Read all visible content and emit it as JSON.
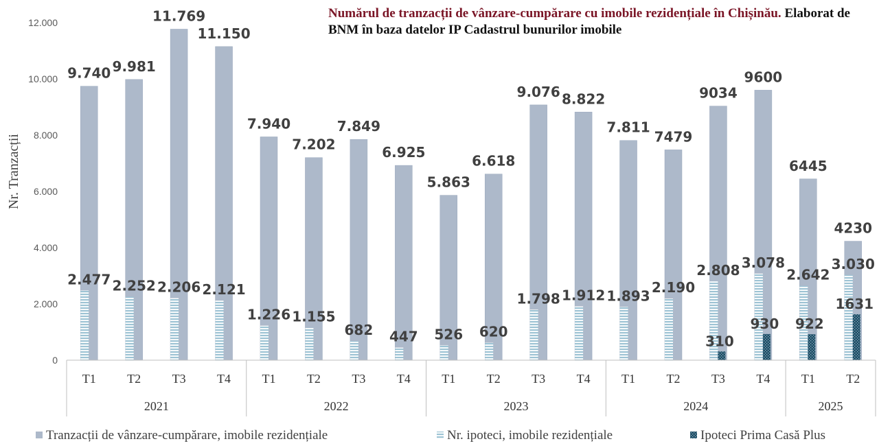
{
  "chart_data": {
    "type": "bar",
    "title_part1": "Numărul de tranzacții de vânzare-cumpărare cu imobile rezidențiale în Chișinău.",
    "title_part2": " Elaborat de BNM în baza datelor IP Cadastrul bunurilor imobile",
    "ylabel": "Nr. Tranzacții",
    "ylim": [
      0,
      12000
    ],
    "yticks": [
      {
        "value": 0,
        "label": "0"
      },
      {
        "value": 2000,
        "label": "2.000"
      },
      {
        "value": 4000,
        "label": "4.000"
      },
      {
        "value": 6000,
        "label": "6.000"
      },
      {
        "value": 8000,
        "label": "8.000"
      },
      {
        "value": 10000,
        "label": "10.000"
      },
      {
        "value": 12000,
        "label": "12.000"
      }
    ],
    "categories": [
      "T1",
      "T2",
      "T3",
      "T4",
      "T1",
      "T2",
      "T3",
      "T4",
      "T1",
      "T2",
      "T3",
      "T4",
      "T1",
      "T2",
      "T3",
      "T4",
      "T1",
      "T2"
    ],
    "groups": [
      {
        "label": "2021",
        "count": 4
      },
      {
        "label": "2022",
        "count": 4
      },
      {
        "label": "2023",
        "count": 4
      },
      {
        "label": "2024",
        "count": 4
      },
      {
        "label": "2025",
        "count": 2
      }
    ],
    "series": [
      {
        "name": "Tranzacții de vânzare-cumpărare, imobile rezidențiale",
        "color": "#adb9ca",
        "values": [
          9740,
          9981,
          11769,
          11150,
          7940,
          7202,
          7849,
          6925,
          5863,
          6618,
          9076,
          8822,
          7811,
          7479,
          9034,
          9600,
          6445,
          4230
        ],
        "labels": [
          "9.740",
          "9.981",
          "11.769",
          "11.150",
          "7.940",
          "7.202",
          "7.849",
          "6.925",
          "5.863",
          "6.618",
          "9.076",
          "8.822",
          "7.811",
          "7479",
          "9034",
          "9600",
          "6445",
          "4230"
        ]
      },
      {
        "name": "Nr. ipoteci, imobile rezidențiale",
        "color": "#9dc3d4",
        "values": [
          2477,
          2252,
          2206,
          2121,
          1226,
          1155,
          682,
          447,
          526,
          620,
          1798,
          1912,
          1893,
          2190,
          2808,
          3078,
          2642,
          3030
        ],
        "labels": [
          "2.477",
          "2.252",
          "2.206",
          "2.121",
          "1.226",
          "1.155",
          "682",
          "447",
          "526",
          "620",
          "1.798",
          "1.912",
          "1.893",
          "2.190",
          "2.808",
          "3.078",
          "2.642",
          "3.030"
        ]
      },
      {
        "name": "Ipoteci Prima Casă Plus",
        "color": "#1f4e66",
        "values": [
          null,
          null,
          null,
          null,
          null,
          null,
          null,
          null,
          null,
          null,
          null,
          null,
          null,
          null,
          310,
          930,
          922,
          1631
        ],
        "labels": [
          "",
          "",
          "",
          "",
          "",
          "",
          "",
          "",
          "",
          "",
          "",
          "",
          "",
          "",
          "310",
          "930",
          "922",
          "1631"
        ]
      }
    ],
    "legend_position": "bottom",
    "grid": false
  }
}
